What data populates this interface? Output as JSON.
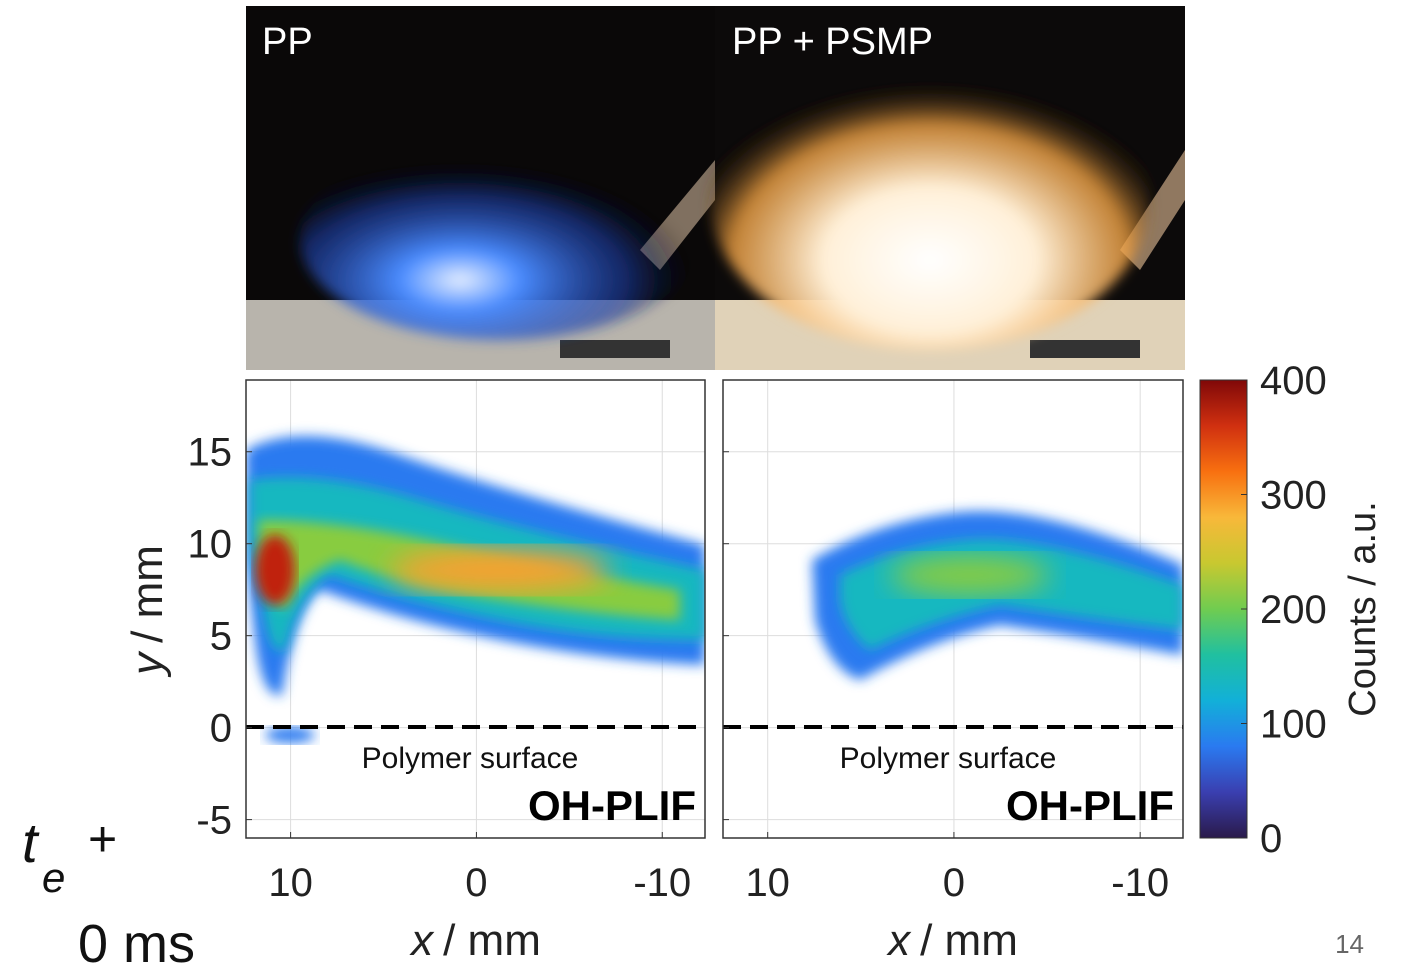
{
  "photos": [
    {
      "label": "PP"
    },
    {
      "label": "PP + PSMP"
    }
  ],
  "panels": [
    {
      "annotation": "Polymer surface",
      "method": "OH-PLIF"
    },
    {
      "annotation": "Polymer surface",
      "method": "OH-PLIF"
    }
  ],
  "x_axis": {
    "symbol": "x",
    "unit": "/ mm",
    "lim": [
      12.4,
      -12.3
    ],
    "ticks": [
      10,
      0,
      -10
    ]
  },
  "y_axis": {
    "symbol": "y",
    "unit": "/ mm",
    "lim": [
      -6,
      18.9
    ],
    "ticks": [
      15,
      10,
      5,
      0,
      -5
    ]
  },
  "colorbar": {
    "label": "Counts / a.u.",
    "lim": [
      0,
      400
    ],
    "ticks": [
      0,
      100,
      200,
      300,
      400
    ]
  },
  "time": {
    "symbol": "t",
    "subscript": "e",
    "operator": "+",
    "value": "0 ms"
  },
  "page_number": "14"
}
